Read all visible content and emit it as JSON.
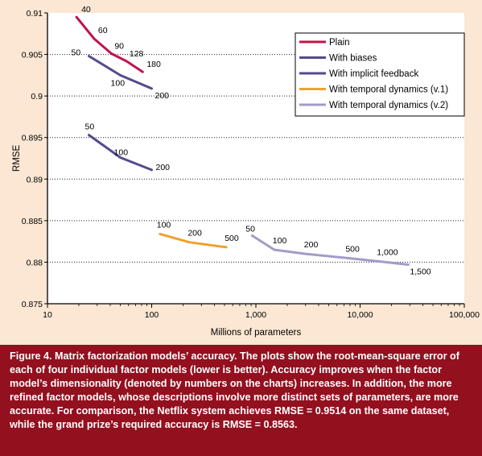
{
  "chart_data": {
    "type": "line",
    "ylabel": "RMSE",
    "xlabel": "Millions of parameters",
    "x_scale": "log",
    "xlim": [
      10,
      100000
    ],
    "ylim": [
      0.875,
      0.91
    ],
    "grid": "horizontal dotted",
    "legend_placement": "top-right",
    "x_ticks": [
      "10",
      "100",
      "1,000",
      "10,000",
      "100,000"
    ],
    "y_ticks": [
      "0.875",
      "0.88",
      "0.885",
      "0.89",
      "0.895",
      "0.9",
      "0.905",
      "0.91"
    ],
    "series": [
      {
        "name": "Plain",
        "color": "#c0134a",
        "points": [
          {
            "x": 19,
            "y": 0.9095,
            "label": "40"
          },
          {
            "x": 28,
            "y": 0.9069,
            "label": "60"
          },
          {
            "x": 41,
            "y": 0.9051,
            "label": "90"
          },
          {
            "x": 57,
            "y": 0.9042,
            "label": "128"
          },
          {
            "x": 82,
            "y": 0.9029,
            "label": "180"
          }
        ]
      },
      {
        "name": "With biases",
        "color": "#554a8c",
        "points": [
          {
            "x": 25,
            "y": 0.9048,
            "label": "50"
          },
          {
            "x": 50,
            "y": 0.9025,
            "label": "100"
          },
          {
            "x": 100,
            "y": 0.9009,
            "label": "200"
          }
        ]
      },
      {
        "name": "With implicit feedback",
        "color": "#554a8c",
        "points": [
          {
            "x": 25,
            "y": 0.8953,
            "label": "50"
          },
          {
            "x": 50,
            "y": 0.8926,
            "label": "100"
          },
          {
            "x": 100,
            "y": 0.8911,
            "label": "200"
          }
        ]
      },
      {
        "name": "With temporal dynamics (v.1)",
        "color": "#f0a030",
        "points": [
          {
            "x": 120,
            "y": 0.8834,
            "label": "100"
          },
          {
            "x": 230,
            "y": 0.8824,
            "label": "200"
          },
          {
            "x": 520,
            "y": 0.8818,
            "label": "500"
          }
        ]
      },
      {
        "name": "With temporal dynamics (v.2)",
        "color": "#a49bc9",
        "points": [
          {
            "x": 920,
            "y": 0.8832,
            "label": "50"
          },
          {
            "x": 1500,
            "y": 0.8815,
            "label": "100"
          },
          {
            "x": 3000,
            "y": 0.881,
            "label": "200"
          },
          {
            "x": 7500,
            "y": 0.8805,
            "label": "500"
          },
          {
            "x": 15000,
            "y": 0.8801,
            "label": "1,000"
          },
          {
            "x": 29000,
            "y": 0.8797,
            "label": "1,500"
          }
        ]
      }
    ]
  },
  "caption": {
    "label": "Figure 4.",
    "text": " Matrix factorization models’ accuracy. The plots show the root-mean-square error of each of four individual factor models (lower is better). Accuracy improves when the factor model’s dimensionality (denoted by numbers on the charts) increases. In addition, the more refined factor models, whose descriptions involve more distinct sets of parameters, are more accurate. For comparison, the Netflix system achieves RMSE = 0.9514 on the same dataset, while the grand prize’s required accuracy is RMSE = 0.8563."
  }
}
